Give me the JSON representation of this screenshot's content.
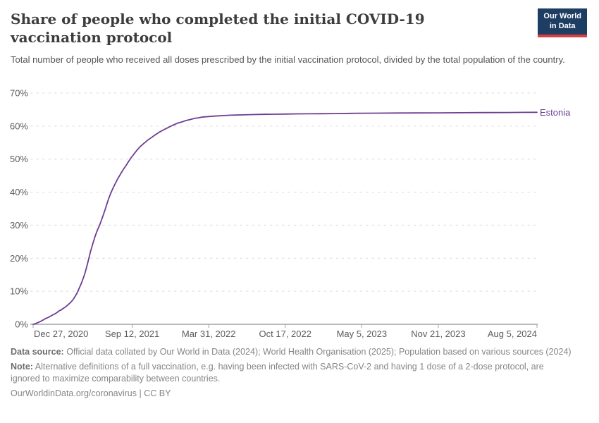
{
  "header": {
    "title": "Share of people who completed the initial COVID-19 vaccination protocol",
    "subtitle": "Total number of people who received all doses prescribed by the initial vaccination protocol, divided by the total population of the country.",
    "logo": {
      "line1": "Our World",
      "line2": "in Data",
      "bg": "#1d3d63",
      "accent": "#dc3d43"
    }
  },
  "chart_data": {
    "type": "line",
    "title": "Share of people who completed the initial COVID-19 vaccination protocol",
    "xlabel": "",
    "ylabel": "",
    "x_axis": {
      "type": "date",
      "tick_labels": [
        "Dec 27, 2020",
        "Sep 12, 2021",
        "Mar 31, 2022",
        "Oct 17, 2022",
        "May 5, 2023",
        "Nov 21, 2023",
        "Aug 5, 2024"
      ],
      "tick_days": [
        0,
        259,
        459,
        659,
        859,
        1059,
        1317
      ],
      "day_range": [
        0,
        1317
      ]
    },
    "y_axis": {
      "unit": "%",
      "ticks": [
        0,
        10,
        20,
        30,
        40,
        50,
        60,
        70
      ],
      "range": [
        0,
        70
      ],
      "grid": "dashed"
    },
    "grid_color": "#dcdcdc",
    "axis_color": "#a4a4a4",
    "legend_position": "end-of-line",
    "series": [
      {
        "name": "Estonia",
        "color": "#6d3e91",
        "points_day_pct": [
          [
            0,
            0
          ],
          [
            4,
            0.1
          ],
          [
            8,
            0.3
          ],
          [
            12,
            0.5
          ],
          [
            16,
            0.7
          ],
          [
            20,
            0.9
          ],
          [
            24,
            1.2
          ],
          [
            28,
            1.4
          ],
          [
            32,
            1.7
          ],
          [
            36,
            1.9
          ],
          [
            40,
            2.1
          ],
          [
            44,
            2.4
          ],
          [
            48,
            2.6
          ],
          [
            52,
            2.9
          ],
          [
            56,
            3.1
          ],
          [
            60,
            3.4
          ],
          [
            63,
            3.6
          ],
          [
            66,
            3.9
          ],
          [
            70,
            4.2
          ],
          [
            73,
            4.3
          ],
          [
            76,
            4.6
          ],
          [
            80,
            4.9
          ],
          [
            84,
            5.2
          ],
          [
            88,
            5.6
          ],
          [
            92,
            6.0
          ],
          [
            96,
            6.4
          ],
          [
            100,
            6.9
          ],
          [
            104,
            7.4
          ],
          [
            108,
            8.1
          ],
          [
            112,
            8.9
          ],
          [
            115,
            9.5
          ],
          [
            117,
            10.0
          ],
          [
            120,
            10.8
          ],
          [
            123,
            11.6
          ],
          [
            126,
            12.4
          ],
          [
            129,
            13.3
          ],
          [
            132,
            14.3
          ],
          [
            135,
            15.3
          ],
          [
            138,
            16.5
          ],
          [
            141,
            17.8
          ],
          [
            144,
            19.2
          ],
          [
            147,
            20.6
          ],
          [
            150,
            22.0
          ],
          [
            153,
            23.2
          ],
          [
            156,
            24.4
          ],
          [
            159,
            25.5
          ],
          [
            162,
            26.6
          ],
          [
            165,
            27.6
          ],
          [
            168,
            28.5
          ],
          [
            171,
            29.3
          ],
          [
            174,
            30.1
          ],
          [
            177,
            31.0
          ],
          [
            180,
            32.0
          ],
          [
            183,
            33.0
          ],
          [
            186,
            34.0
          ],
          [
            189,
            35.0
          ],
          [
            192,
            36.1
          ],
          [
            195,
            37.2
          ],
          [
            198,
            38.2
          ],
          [
            201,
            39.1
          ],
          [
            204,
            40.0
          ],
          [
            208,
            41.0
          ],
          [
            212,
            42.0
          ],
          [
            216,
            42.9
          ],
          [
            220,
            43.8
          ],
          [
            224,
            44.6
          ],
          [
            228,
            45.4
          ],
          [
            232,
            46.2
          ],
          [
            236,
            46.9
          ],
          [
            240,
            47.6
          ],
          [
            244,
            48.3
          ],
          [
            248,
            49.0
          ],
          [
            252,
            49.7
          ],
          [
            256,
            50.4
          ],
          [
            260,
            51.0
          ],
          [
            264,
            51.6
          ],
          [
            268,
            52.2
          ],
          [
            272,
            52.8
          ],
          [
            276,
            53.3
          ],
          [
            280,
            53.8
          ],
          [
            285,
            54.3
          ],
          [
            290,
            54.8
          ],
          [
            295,
            55.3
          ],
          [
            300,
            55.8
          ],
          [
            305,
            56.2
          ],
          [
            310,
            56.6
          ],
          [
            315,
            57.0
          ],
          [
            320,
            57.4
          ],
          [
            325,
            57.8
          ],
          [
            330,
            58.2
          ],
          [
            335,
            58.5
          ],
          [
            340,
            58.8
          ],
          [
            345,
            59.1
          ],
          [
            350,
            59.4
          ],
          [
            355,
            59.7
          ],
          [
            360,
            60.0
          ],
          [
            366,
            60.3
          ],
          [
            372,
            60.6
          ],
          [
            378,
            60.9
          ],
          [
            384,
            61.1
          ],
          [
            390,
            61.3
          ],
          [
            397,
            61.6
          ],
          [
            404,
            61.8
          ],
          [
            411,
            62.0
          ],
          [
            418,
            62.2
          ],
          [
            425,
            62.4
          ],
          [
            432,
            62.5
          ],
          [
            440,
            62.7
          ],
          [
            450,
            62.8
          ],
          [
            459,
            62.9
          ],
          [
            470,
            63.0
          ],
          [
            485,
            63.1
          ],
          [
            500,
            63.2
          ],
          [
            515,
            63.3
          ],
          [
            530,
            63.35
          ],
          [
            550,
            63.4
          ],
          [
            575,
            63.5
          ],
          [
            600,
            63.55
          ],
          [
            630,
            63.6
          ],
          [
            659,
            63.65
          ],
          [
            690,
            63.7
          ],
          [
            720,
            63.72
          ],
          [
            750,
            63.75
          ],
          [
            790,
            63.8
          ],
          [
            830,
            63.85
          ],
          [
            859,
            63.9
          ],
          [
            900,
            63.92
          ],
          [
            950,
            63.95
          ],
          [
            1000,
            63.98
          ],
          [
            1059,
            64.0
          ],
          [
            1120,
            64.05
          ],
          [
            1180,
            64.08
          ],
          [
            1240,
            64.12
          ],
          [
            1280,
            64.15
          ],
          [
            1317,
            64.18
          ]
        ]
      }
    ]
  },
  "footer": {
    "source_label": "Data source:",
    "source_text": " Official data collated by Our World in Data (2024); World Health Organisation (2025); Population based on various sources (2024)",
    "note_label": "Note:",
    "note_text": " Alternative definitions of a full vaccination, e.g. having been infected with SARS-CoV-2 and having 1 dose of a 2-dose protocol, are ignored to maximize comparability between countries.",
    "credit_link": "OurWorldinData.org/coronavirus",
    "credit_sep": " | ",
    "credit_license": "CC BY"
  }
}
